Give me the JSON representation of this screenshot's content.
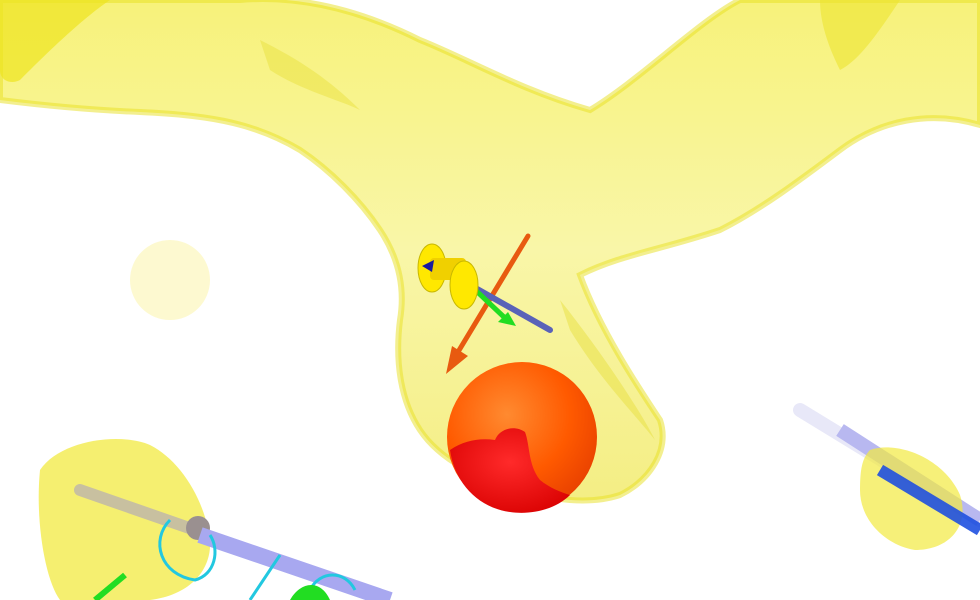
{
  "scene": {
    "kind": "molecular-visualization",
    "background": "#ffffff",
    "colors": {
      "density_surface": "#f5f07a",
      "density_edge": "#e8e020",
      "sphere_main": "#ff5a00",
      "sphere_overlap": "#ff1a1a",
      "arrow_orange": "#e85a10",
      "stick_blue": "#5a62b8",
      "ring_yellow": "#ffe800",
      "arrow_green": "#22dd22",
      "cyan_ribbon": "#22c8e0",
      "lavender_stick": "#a8a8f0",
      "gray_bead": "#9a9090"
    },
    "elements": [
      "density-surface",
      "density-blob-left",
      "orange-sphere",
      "orange-arrow",
      "axis-stick",
      "ring-marker",
      "green-arrow",
      "bottom-left-cluster",
      "right-stick-cluster"
    ]
  }
}
